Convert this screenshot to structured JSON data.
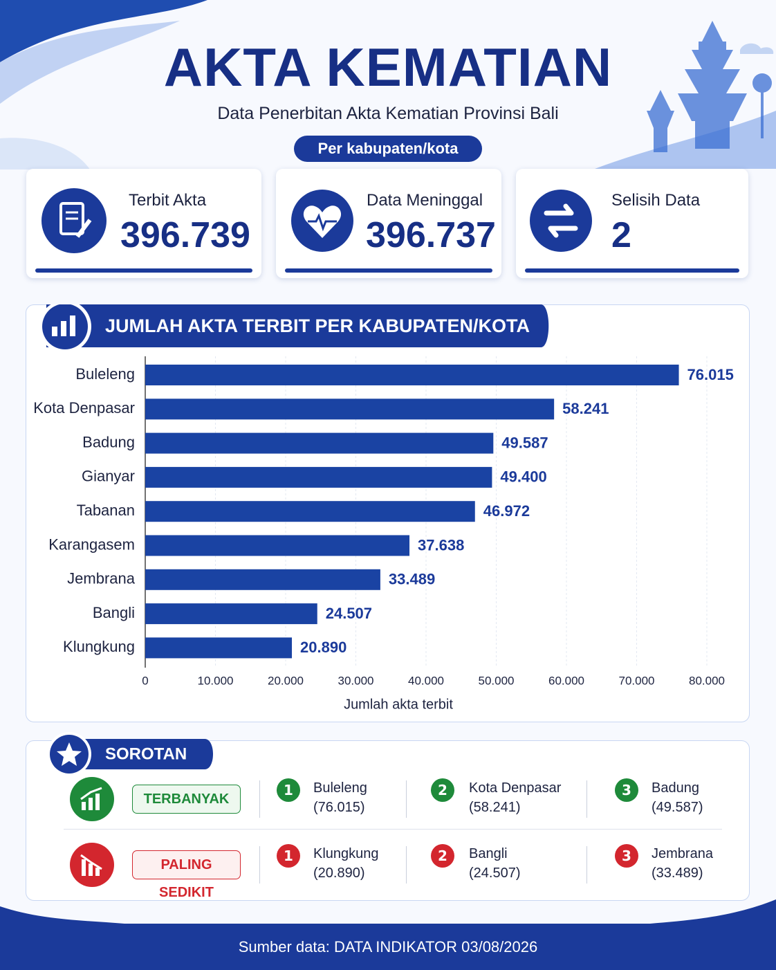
{
  "header": {
    "title": "AKTA KEMATIAN",
    "subtitle": "Data Penerbitan Akta Kematian Provinsi Bali",
    "badge": "Per kabupaten/kota"
  },
  "stats": [
    {
      "label": "Terbit Akta",
      "value": "396.739"
    },
    {
      "label": "Data Meninggal",
      "value": "396.737"
    },
    {
      "label": "Selisih Data",
      "value": "2"
    }
  ],
  "chart_data": {
    "type": "bar",
    "orientation": "horizontal",
    "title": "JUMLAH AKTA TERBIT PER KABUPATEN/KOTA",
    "categories": [
      "Buleleng",
      "Kota Denpasar",
      "Badung",
      "Gianyar",
      "Tabanan",
      "Karangasem",
      "Jembrana",
      "Bangli",
      "Klungkung"
    ],
    "values": [
      76015,
      58241,
      49587,
      49400,
      46972,
      37638,
      33489,
      24507,
      20890
    ],
    "value_labels": [
      "76.015",
      "58.241",
      "49.587",
      "49.400",
      "46.972",
      "37.638",
      "33.489",
      "24.507",
      "20.890"
    ],
    "color": "#1a43a3",
    "xlim": [
      0,
      80000
    ],
    "xticks": [
      0,
      {
        "value": 10000,
        "label": "10.000"
      },
      {
        "value": 20000,
        "label": "20.000"
      },
      {
        "value": 30000,
        "label": "30.000"
      },
      {
        "value": 40000,
        "label": "40.000"
      },
      {
        "value": 50000,
        "label": "50.000"
      },
      {
        "value": 60000,
        "label": "60.000"
      },
      {
        "value": 70000,
        "label": "70.000"
      },
      {
        "value": 80000,
        "label": "80.000"
      }
    ],
    "xlabel": "Jumlah akta terbit",
    "grid": true
  },
  "highlights": {
    "title": "SOROTAN",
    "rows": [
      {
        "label": "TERBANYAK",
        "items": [
          {
            "rank": 1,
            "name": "Buleleng",
            "value": "(76.015)"
          },
          {
            "rank": 2,
            "name": "Kota Denpasar",
            "value": "(58.241)"
          },
          {
            "rank": 3,
            "name": "Badung",
            "value": "(49.587)"
          }
        ]
      },
      {
        "label": "PALING SEDIKIT",
        "items": [
          {
            "rank": 1,
            "name": "Klungkung",
            "value": "(20.890)"
          },
          {
            "rank": 2,
            "name": "Bangli",
            "value": "(24.507)"
          },
          {
            "rank": 3,
            "name": "Jembrana",
            "value": "(33.489)"
          }
        ]
      }
    ]
  },
  "footer": "Sumber data: DATA INDIKATOR 03/08/2026"
}
